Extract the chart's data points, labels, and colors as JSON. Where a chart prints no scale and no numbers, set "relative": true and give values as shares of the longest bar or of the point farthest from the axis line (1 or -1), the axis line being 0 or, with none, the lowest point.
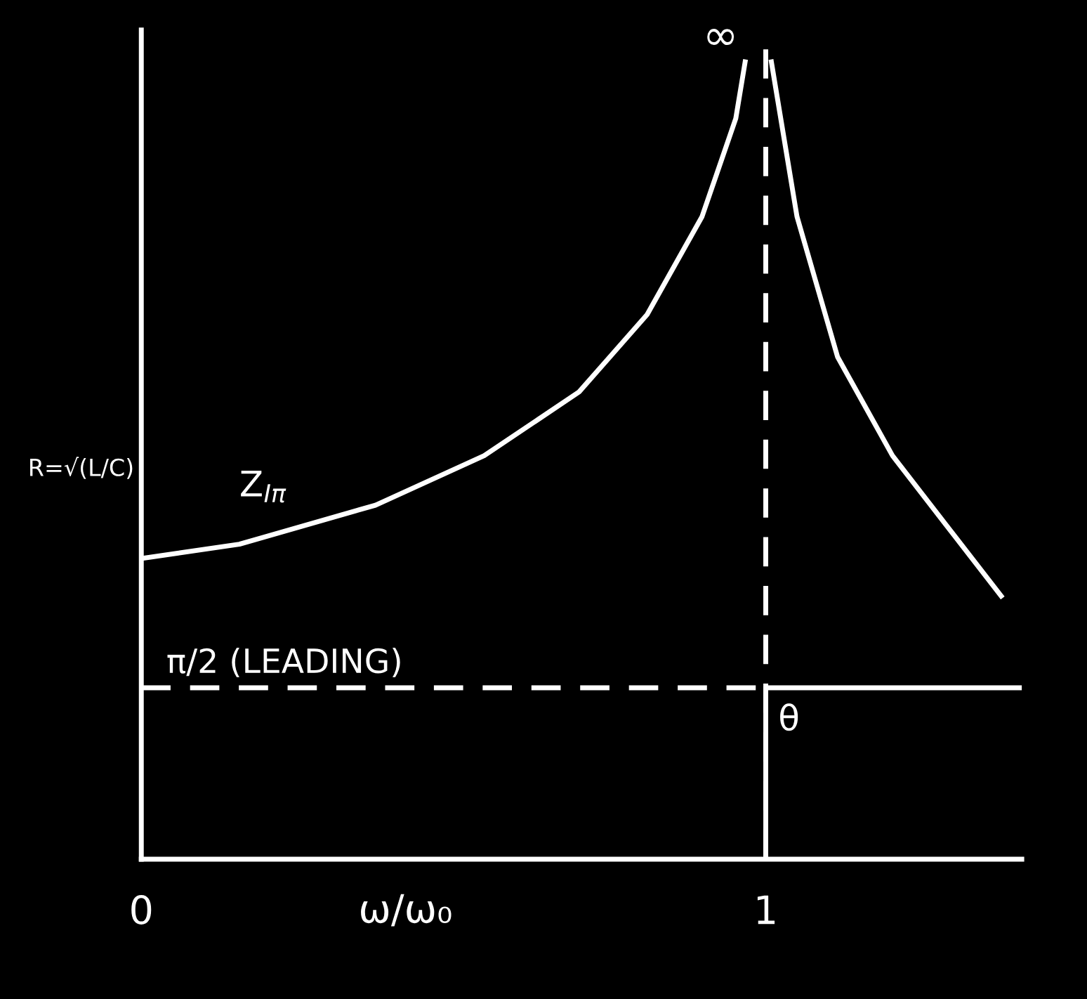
{
  "chart_data": {
    "type": "line",
    "relative": true,
    "xlabel": "ω/ω₀",
    "xlim": [
      0,
      1.41
    ],
    "xticks": [
      0,
      1
    ],
    "legend": false,
    "grid": false,
    "marker": "none",
    "series": [
      {
        "name": "Z$_{Iπ}$",
        "color": "#ffffff",
        "x": [
          0,
          0.157,
          0.375,
          0.549,
          0.701,
          0.81,
          0.898,
          0.952,
          0.967,
          1,
          1.009,
          1.05,
          1.115,
          1.203,
          1.29,
          1.377
        ],
        "values": [
          0.377,
          0.395,
          0.444,
          0.506,
          0.586,
          0.683,
          0.806,
          0.929,
          1,
          null,
          1,
          0.806,
          0.63,
          0.506,
          0.418,
          0.33
        ]
      },
      {
        "name": "θ",
        "color": "#ffffff",
        "x": [
          1,
          1,
          1.41
        ],
        "values": [
          0,
          0.215,
          0.215
        ]
      }
    ],
    "ref_lines": [
      {
        "axis": "y",
        "value": 0.215,
        "label": "π/2 (LEADING)",
        "color": "#ffffff",
        "line_style": "dashed"
      },
      {
        "axis": "x",
        "value": 1,
        "label": null,
        "color": "#ffffff",
        "line_style": "dashed"
      }
    ],
    "annotations": [
      "R=√(L/C)",
      {
        "text": "∞",
        "x": 1,
        "y": 1.03
      }
    ]
  }
}
